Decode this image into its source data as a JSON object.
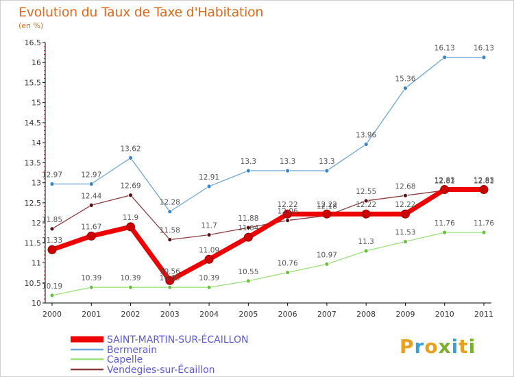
{
  "header": {
    "title": "Evolution du Taux de Taxe d'Habitation",
    "subtitle": "(en %)"
  },
  "logo": {
    "text": "Proxiti",
    "letters": [
      {
        "char": "P",
        "color": "#e8a020"
      },
      {
        "char": "r",
        "color": "#3aa0d8"
      },
      {
        "char": "o",
        "color": "#e8a020"
      },
      {
        "char": "x",
        "color": "#7ab02a"
      },
      {
        "char": "i",
        "color": "#3aa0d8"
      },
      {
        "char": "t",
        "color": "#e8a020"
      },
      {
        "char": "i",
        "color": "#7ab02a"
      }
    ]
  },
  "chart_data": {
    "type": "line",
    "title": "Evolution du Taux de Taxe d'Habitation",
    "subtitle": "(en %)",
    "xlabel": "",
    "ylabel": "",
    "x": [
      "2000",
      "2001",
      "2002",
      "2003",
      "2004",
      "2005",
      "2006",
      "2007",
      "2008",
      "2009",
      "2010",
      "2011"
    ],
    "ylim": [
      10,
      16.5
    ],
    "yticks": [
      "10",
      "10.5",
      "11",
      "11.5",
      "12",
      "12.5",
      "13",
      "13.5",
      "14",
      "14.5",
      "15",
      "15.5",
      "16",
      "16.5"
    ],
    "grid": false,
    "legend_position": "bottom-left",
    "series": [
      {
        "name": "SAINT-MARTIN-SUR-ÉCAILLON",
        "color": "#ee0000",
        "marker_color": "#cc0000",
        "width": 7,
        "values": [
          11.33,
          11.67,
          11.9,
          10.56,
          11.09,
          11.64,
          12.22,
          12.22,
          12.22,
          12.22,
          12.83,
          12.83
        ],
        "labels": [
          "11.33",
          "11.67",
          "11.9",
          "10.56",
          "11.09",
          "11.64",
          "12.22",
          "12.22",
          "12.22",
          "12.22",
          "12.83",
          "12.83"
        ]
      },
      {
        "name": "Bermerain",
        "color": "#6ea6d8",
        "marker_color": "#3a86cc",
        "width": 1.3,
        "values": [
          12.97,
          12.97,
          13.62,
          12.28,
          12.91,
          13.3,
          13.3,
          13.3,
          13.96,
          15.36,
          16.13,
          16.13
        ],
        "labels": [
          "12.97",
          "12.97",
          "13.62",
          "12.28",
          "12.91",
          "13.3",
          "13.3",
          "13.3",
          "13.96",
          "15.36",
          "16.13",
          "16.13"
        ]
      },
      {
        "name": "Capelle",
        "color": "#9be07a",
        "marker_color": "#6cc040",
        "width": 1.3,
        "values": [
          10.19,
          10.39,
          10.39,
          10.39,
          10.39,
          10.55,
          10.76,
          10.97,
          11.3,
          11.53,
          11.76,
          11.76
        ],
        "labels": [
          "10.19",
          "10.39",
          "10.39",
          "10.39",
          "10.39",
          "10.55",
          "10.76",
          "10.97",
          "11.3",
          "11.53",
          "11.76",
          "11.76"
        ]
      },
      {
        "name": "Vendegies-sur-Écaillon",
        "color": "#8a3a3a",
        "marker_color": "#5a1010",
        "width": 1.3,
        "values": [
          11.85,
          12.44,
          12.69,
          11.58,
          11.7,
          11.88,
          12.06,
          12.18,
          12.55,
          12.68,
          12.81,
          12.81
        ],
        "labels": [
          "11.85",
          "12.44",
          "12.69",
          "11.58",
          "11.7",
          "11.88",
          "12.06",
          "12.18",
          "12.55",
          "12.68",
          "12.81",
          "12.81"
        ]
      }
    ]
  }
}
